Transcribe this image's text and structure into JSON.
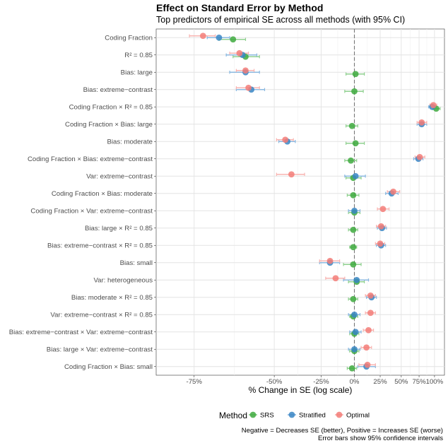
{
  "title": "Effect on Standard Error by Method",
  "subtitle": "Top predictors of empirical SE across all methods (with 95% CI)",
  "caption": {
    "line1": "Negative = Decreases SE (better), Positive = Increases SE (worse)",
    "line2": "Error bars show 95% confidence intervals"
  },
  "colors": {
    "SRS": "#3faa3f",
    "Stratified": "#3a86c4",
    "Optimal": "#f37c78",
    "SRS_bar": "#8fd08f",
    "Stratified_bar": "#8ab8e0",
    "Optimal_bar": "#f8b4b1"
  },
  "chart_data": {
    "type": "forest",
    "xlabel": "% Change in SE (log scale)",
    "x_scale": "log(1 + pct/100)",
    "x_ticks": [
      -75,
      -50,
      -25,
      0,
      25,
      50,
      75,
      100
    ],
    "x_tick_labels": [
      "-75%",
      "-50%",
      "-25%",
      "0%",
      "25%",
      "50%",
      "75%",
      "100%"
    ],
    "xlim": [
      -82,
      118
    ],
    "legend": {
      "title": "Method",
      "position": "bottom",
      "entries": [
        "SRS",
        "Stratified",
        "Optimal"
      ]
    },
    "categories": [
      "Coding Fraction",
      "R² = 0.85",
      "Bias: large",
      "Bias: extreme−contrast",
      "Coding Fraction × R² = 0.85",
      "Coding Fraction × Bias: large",
      "Bias: moderate",
      "Coding Fraction × Bias: extreme−contrast",
      "Var: extreme−contrast",
      "Coding Fraction × Bias: moderate",
      "Coding Fraction × Var: extreme−contrast",
      "Bias: large × R² = 0.85",
      "Bias: extreme−contrast × R² = 0.85",
      "Bias: small",
      "Var: heterogeneous",
      "Bias: moderate × R² = 0.85",
      "Var: extreme−contrast × R² = 0.85",
      "Bias: extreme−contrast × Var: extreme−contrast",
      "Bias: large × Var: extreme−contrast",
      "Coding Fraction × Bias: small"
    ],
    "series": [
      {
        "name": "SRS",
        "values": [
          -65,
          -61,
          1,
          0,
          103,
          -2,
          1,
          -3,
          -1,
          -1,
          0,
          -1,
          -1,
          -1,
          2,
          -1,
          -1,
          0,
          0,
          -2
        ],
        "lower": [
          -69,
          -65,
          -7,
          -8,
          97,
          -7,
          -7,
          -8,
          -7,
          -6,
          -5,
          -5,
          -4,
          -9,
          -5,
          -5,
          -4,
          -4,
          -4,
          -6
        ],
        "upper": [
          -61,
          -56,
          9,
          8,
          110,
          3,
          9,
          2,
          6,
          4,
          5,
          3,
          2,
          6,
          9,
          3,
          3,
          4,
          4,
          2
        ]
      },
      {
        "name": "Stratified",
        "values": [
          -69,
          -62,
          -61,
          -59,
          96,
          79,
          -44,
          74,
          1,
          38,
          0,
          27,
          26,
          -19,
          2,
          16,
          0,
          1,
          0,
          11
        ],
        "lower": [
          -72,
          -67,
          -66,
          -64,
          90,
          72,
          -48,
          67,
          -8,
          31,
          -5,
          22,
          21,
          -26,
          -9,
          11,
          -5,
          -4,
          -5,
          3
        ],
        "upper": [
          -66,
          -57,
          -56,
          -54,
          103,
          87,
          -40,
          81,
          10,
          46,
          5,
          32,
          31,
          -12,
          13,
          21,
          5,
          6,
          5,
          20
        ]
      },
      {
        "name": "Optimal",
        "values": [
          -73,
          -63,
          -61,
          -60,
          98,
          79,
          -45,
          76,
          -42,
          40,
          28,
          26,
          25,
          -19,
          -15,
          15,
          15,
          13,
          11,
          12
        ],
        "lower": [
          -76,
          -66,
          -64,
          -64,
          92,
          72,
          -49,
          69,
          -49,
          33,
          22,
          21,
          20,
          -26,
          -22,
          10,
          10,
          8,
          6,
          4
        ],
        "upper": [
          -70,
          -60,
          -58,
          -56,
          104,
          87,
          -41,
          84,
          -35,
          48,
          35,
          31,
          30,
          -12,
          -8,
          20,
          20,
          18,
          16,
          20
        ]
      }
    ]
  }
}
